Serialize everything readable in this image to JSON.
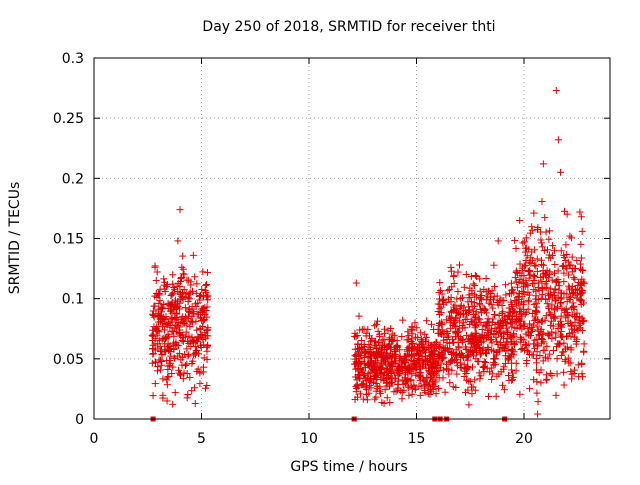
{
  "chart_data": {
    "type": "scatter",
    "title": "Day 250 of 2018, SRMTID for receiver thti",
    "xlabel": "GPS time / hours",
    "ylabel": "SRMTID / TECUs",
    "xlim": [
      0,
      24
    ],
    "ylim": [
      0,
      0.3
    ],
    "xticks": [
      0,
      5,
      10,
      15,
      20
    ],
    "yticks": [
      0,
      0.05,
      0.1,
      0.15,
      0.2,
      0.25,
      0.3
    ],
    "xtick_labels": [
      "0",
      "5",
      "10",
      "15",
      "20"
    ],
    "ytick_labels": [
      "0",
      "0.05",
      "0.1",
      "0.15",
      "0.2",
      "0.25",
      "0.3"
    ],
    "grid": true,
    "marker": "plus",
    "color": "#e00000",
    "clusters": [
      {
        "x_start": 2.7,
        "x_end": 5.3,
        "y_low": 0.02,
        "y_high": 0.13
      },
      {
        "x_start": 12.1,
        "x_end": 16.0,
        "y_low": 0.015,
        "y_high": 0.08
      },
      {
        "x_start": 16.0,
        "x_end": 19.5,
        "y_low": 0.02,
        "y_high": 0.12
      },
      {
        "x_start": 19.5,
        "x_end": 22.8,
        "y_low": 0.02,
        "y_high": 0.17
      }
    ],
    "highlights": [
      {
        "x": 4.0,
        "y": 0.174
      },
      {
        "x": 21.5,
        "y": 0.273
      },
      {
        "x": 21.6,
        "y": 0.232
      },
      {
        "x": 20.9,
        "y": 0.212
      },
      {
        "x": 21.7,
        "y": 0.205
      },
      {
        "x": 19.8,
        "y": 0.165
      },
      {
        "x": 22.6,
        "y": 0.172
      },
      {
        "x": 3.9,
        "y": 0.148
      },
      {
        "x": 12.2,
        "y": 0.113
      },
      {
        "x": 17.0,
        "y": 0.128
      },
      {
        "x": 18.8,
        "y": 0.148
      },
      {
        "x": 3.4,
        "y": 0.015
      }
    ],
    "zero_markers": [
      2.75,
      12.1,
      15.85,
      16.1,
      16.4,
      19.1
    ]
  }
}
